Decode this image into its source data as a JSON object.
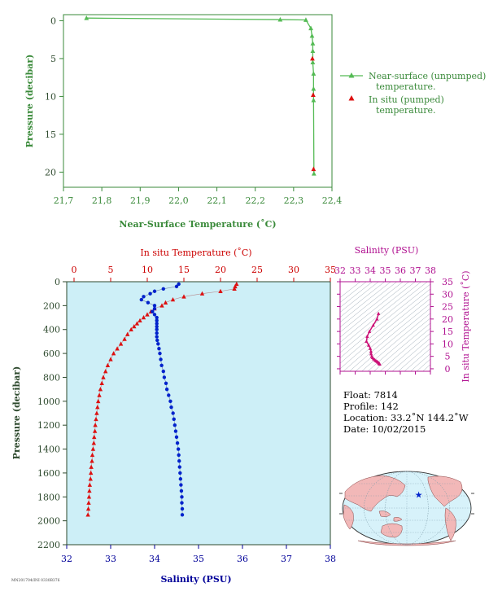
{
  "colors": {
    "surface_line": "#55bb55",
    "insitu_red": "#dd1111",
    "salinity_blue": "#0022cc",
    "salinity_magenta": "#cc1177",
    "panel_bg": "#cdeff7",
    "axis_green": "#3a8a3a",
    "axis_blue": "#000099",
    "axis_red": "#cc0000",
    "axis_magenta": "#b01090",
    "land": "#f2b8b8",
    "ocean": "#d7f2fa"
  },
  "chart_data": [
    {
      "id": "near-surface-profile",
      "type": "line",
      "xlabel": "Near-Surface Temperature (˚C)",
      "ylabel": "Pressure (decibar)",
      "xlim": [
        21.7,
        22.4
      ],
      "ylim": [
        22,
        -0.8
      ],
      "xticks": [
        "21,7",
        "21,8",
        "21,9",
        "22,0",
        "22,1",
        "22,2",
        "22,3",
        "22,4"
      ],
      "yticks": [
        "0",
        "5",
        "10",
        "15",
        "20"
      ],
      "legend_position": "right",
      "series": [
        {
          "name": "Near-surface (unpumped) temperature.",
          "legend_line2": "temperature.",
          "legend_line1": "Near-surface (unpumped)",
          "marker": "triangle",
          "points": [
            [
              21.76,
              -0.35
            ],
            [
              22.265,
              -0.15
            ],
            [
              22.332,
              -0.1
            ],
            [
              22.345,
              1.0
            ],
            [
              22.348,
              2.0
            ],
            [
              22.35,
              3.0
            ],
            [
              22.35,
              4.0
            ],
            [
              22.35,
              5.5
            ],
            [
              22.352,
              7.0
            ],
            [
              22.352,
              9.0
            ],
            [
              22.352,
              10.5
            ],
            [
              22.353,
              20.2
            ]
          ]
        },
        {
          "name": "In situ (pumped) temperature.",
          "legend_line1": "In situ (pumped)",
          "legend_line2": "temperature.",
          "marker": "triangle",
          "points": [
            [
              22.349,
              5.0
            ],
            [
              22.351,
              9.8
            ],
            [
              22.352,
              19.6
            ]
          ]
        }
      ]
    },
    {
      "id": "deep-profile",
      "type": "scatter",
      "title_top": "In situ Temperature (˚C)",
      "xlabel": "Salinity (PSU)",
      "ylabel": "Pressure (decibar)",
      "temp_lim": [
        -1,
        35
      ],
      "temp_ticks": [
        "0",
        "5",
        "10",
        "15",
        "20",
        "25",
        "30",
        "35"
      ],
      "sal_lim": [
        32,
        38
      ],
      "sal_ticks": [
        "32",
        "33",
        "34",
        "35",
        "36",
        "37",
        "38"
      ],
      "ylim": [
        0,
        2200
      ],
      "yticks": [
        "0",
        "200",
        "400",
        "600",
        "800",
        "1000",
        "1200",
        "1400",
        "1600",
        "1800",
        "2000",
        "2200"
      ],
      "temperature": {
        "name": "In situ Temperature",
        "points": [
          [
            22.2,
            20
          ],
          [
            22.0,
            40
          ],
          [
            21.9,
            60
          ],
          [
            20.0,
            80
          ],
          [
            17.5,
            100
          ],
          [
            15.0,
            125
          ],
          [
            13.5,
            150
          ],
          [
            12.5,
            175
          ],
          [
            12.0,
            200
          ],
          [
            11.0,
            225
          ],
          [
            10.5,
            250
          ],
          [
            10.0,
            275
          ],
          [
            9.5,
            300
          ],
          [
            9.0,
            325
          ],
          [
            8.6,
            350
          ],
          [
            8.2,
            375
          ],
          [
            7.8,
            400
          ],
          [
            7.3,
            440
          ],
          [
            6.9,
            480
          ],
          [
            6.4,
            520
          ],
          [
            5.9,
            560
          ],
          [
            5.4,
            600
          ],
          [
            5.0,
            650
          ],
          [
            4.6,
            700
          ],
          [
            4.3,
            750
          ],
          [
            4.0,
            800
          ],
          [
            3.8,
            850
          ],
          [
            3.6,
            900
          ],
          [
            3.45,
            950
          ],
          [
            3.3,
            1000
          ],
          [
            3.2,
            1050
          ],
          [
            3.1,
            1100
          ],
          [
            3.0,
            1150
          ],
          [
            2.9,
            1200
          ],
          [
            2.85,
            1250
          ],
          [
            2.75,
            1300
          ],
          [
            2.7,
            1350
          ],
          [
            2.6,
            1400
          ],
          [
            2.5,
            1450
          ],
          [
            2.45,
            1500
          ],
          [
            2.35,
            1550
          ],
          [
            2.3,
            1600
          ],
          [
            2.25,
            1650
          ],
          [
            2.15,
            1700
          ],
          [
            2.1,
            1750
          ],
          [
            2.05,
            1800
          ],
          [
            2.0,
            1850
          ],
          [
            1.95,
            1900
          ],
          [
            1.9,
            1950
          ]
        ]
      },
      "salinity": {
        "name": "Salinity",
        "points": [
          [
            34.55,
            20
          ],
          [
            34.5,
            40
          ],
          [
            34.2,
            60
          ],
          [
            34.0,
            80
          ],
          [
            33.9,
            100
          ],
          [
            33.75,
            125
          ],
          [
            33.7,
            150
          ],
          [
            33.85,
            175
          ],
          [
            34.0,
            200
          ],
          [
            34.0,
            225
          ],
          [
            33.95,
            250
          ],
          [
            34.0,
            275
          ],
          [
            34.05,
            300
          ],
          [
            34.05,
            325
          ],
          [
            34.05,
            350
          ],
          [
            34.05,
            375
          ],
          [
            34.05,
            400
          ],
          [
            34.05,
            430
          ],
          [
            34.05,
            460
          ],
          [
            34.06,
            490
          ],
          [
            34.08,
            520
          ],
          [
            34.1,
            560
          ],
          [
            34.12,
            600
          ],
          [
            34.14,
            650
          ],
          [
            34.16,
            700
          ],
          [
            34.2,
            750
          ],
          [
            34.22,
            800
          ],
          [
            34.26,
            850
          ],
          [
            34.28,
            900
          ],
          [
            34.32,
            950
          ],
          [
            34.36,
            1000
          ],
          [
            34.38,
            1050
          ],
          [
            34.42,
            1100
          ],
          [
            34.44,
            1150
          ],
          [
            34.46,
            1200
          ],
          [
            34.48,
            1250
          ],
          [
            34.5,
            1300
          ],
          [
            34.52,
            1350
          ],
          [
            34.54,
            1400
          ],
          [
            34.55,
            1450
          ],
          [
            34.56,
            1500
          ],
          [
            34.57,
            1550
          ],
          [
            34.58,
            1600
          ],
          [
            34.59,
            1650
          ],
          [
            34.6,
            1700
          ],
          [
            34.61,
            1750
          ],
          [
            34.62,
            1800
          ],
          [
            34.62,
            1850
          ],
          [
            34.63,
            1900
          ],
          [
            34.63,
            1950
          ]
        ]
      }
    },
    {
      "id": "ts-diagram",
      "type": "line",
      "title_top": "Salinity (PSU)",
      "ylabel_right": "In situ Temperature (˚C)",
      "xlim": [
        32,
        38
      ],
      "ylim": [
        -1,
        35
      ],
      "xticks": [
        "32",
        "33",
        "34",
        "35",
        "36",
        "37",
        "38"
      ],
      "yticks": [
        "0",
        "5",
        "10",
        "15",
        "20",
        "25",
        "30",
        "35"
      ],
      "points": [
        [
          34.55,
          22.2
        ],
        [
          34.45,
          20.0
        ],
        [
          34.2,
          17.5
        ],
        [
          33.95,
          15.0
        ],
        [
          33.8,
          13.0
        ],
        [
          33.75,
          11.0
        ],
        [
          33.9,
          9.5
        ],
        [
          34.0,
          8.2
        ],
        [
          34.05,
          7.0
        ],
        [
          34.06,
          6.0
        ],
        [
          34.1,
          5.0
        ],
        [
          34.16,
          4.5
        ],
        [
          34.22,
          4.0
        ],
        [
          34.3,
          3.6
        ],
        [
          34.38,
          3.2
        ],
        [
          34.46,
          2.9
        ],
        [
          34.52,
          2.6
        ],
        [
          34.57,
          2.3
        ],
        [
          34.6,
          2.1
        ],
        [
          34.63,
          1.9
        ]
      ]
    }
  ],
  "info": {
    "float": "Float:  7814",
    "profile": "Profile:  142",
    "location": "Location:  33.2˚N  144.2˚W",
    "date": "Date:  10/02/2015"
  },
  "map": {
    "marker_icon": "star-icon",
    "marker_lon": -144.2,
    "marker_lat": 33.2
  },
  "footer_code": "MN201704/INI 0330B376"
}
